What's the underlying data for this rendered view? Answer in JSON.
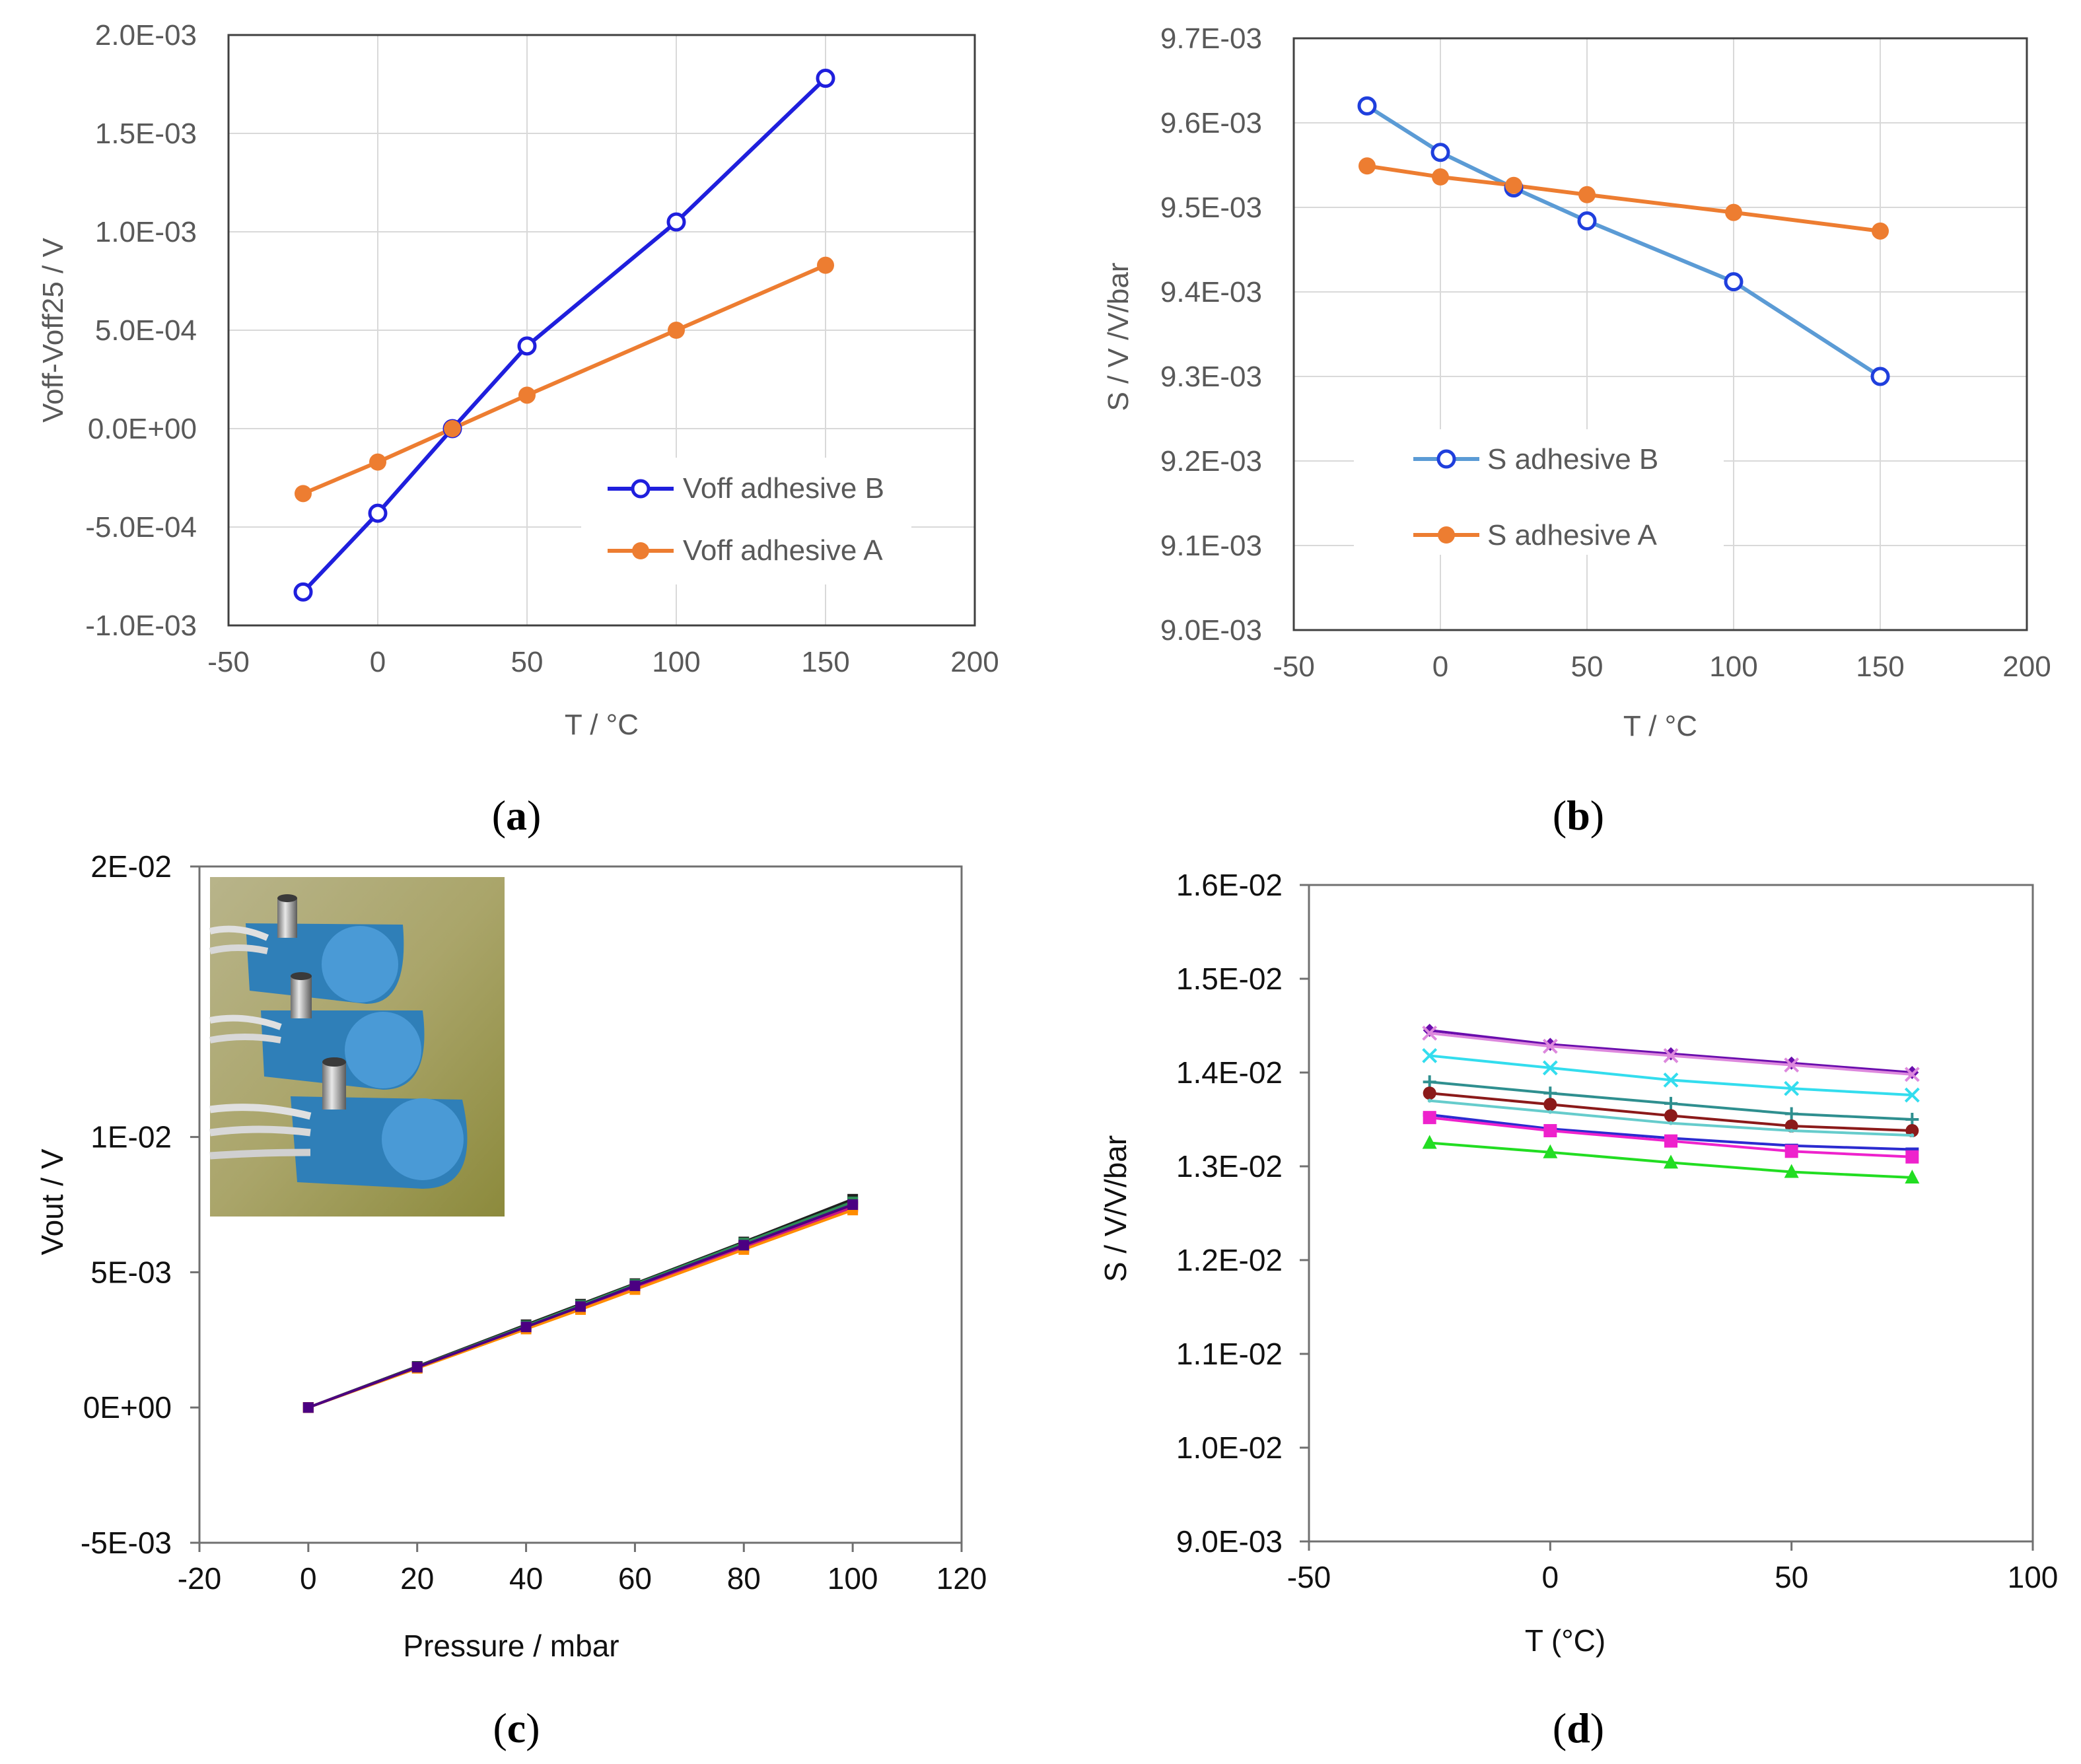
{
  "chart_data": [
    {
      "id": "a",
      "type": "line",
      "panel_label": "a",
      "xlabel": "T / °C",
      "ylabel": "Voff-Voff25 / V",
      "xlim": [
        -50,
        200
      ],
      "ylim": [
        -0.001,
        0.002
      ],
      "x_ticks": [
        "-50",
        "0",
        "50",
        "100",
        "150",
        "200"
      ],
      "y_ticks": [
        "-1.0E-03",
        "-5.0E-04",
        "0.0E+00",
        "5.0E-04",
        "1.0E-03",
        "1.5E-03",
        "2.0E-03"
      ],
      "grid": true,
      "legend_placement": "bottom-right",
      "series": [
        {
          "name": "Voff adhesive B",
          "color": "#1f1fdd",
          "marker": "open-circle",
          "x": [
            -25,
            0,
            25,
            50,
            100,
            150
          ],
          "y": [
            -0.00083,
            -0.00043,
            0.0,
            0.00042,
            0.00105,
            0.00178
          ]
        },
        {
          "name": "Voff adhesive A",
          "color": "#ed7d31",
          "marker": "filled-circle",
          "x": [
            -25,
            0,
            25,
            50,
            100,
            150
          ],
          "y": [
            -0.00033,
            -0.00017,
            0.0,
            0.00017,
            0.0005,
            0.00083
          ]
        }
      ]
    },
    {
      "id": "b",
      "type": "line",
      "panel_label": "b",
      "xlabel": "T / °C",
      "ylabel": "S / V /V/bar",
      "xlim": [
        -50,
        200
      ],
      "ylim": [
        0.009,
        0.0097
      ],
      "x_ticks": [
        "-50",
        "0",
        "50",
        "100",
        "150",
        "200"
      ],
      "y_ticks": [
        "9.0E-03",
        "9.1E-03",
        "9.2E-03",
        "9.3E-03",
        "9.4E-03",
        "9.5E-03",
        "9.6E-03",
        "9.7E-03"
      ],
      "grid": true,
      "legend_placement": "bottom-left",
      "series": [
        {
          "name": "S adhesive B",
          "color": "#5b9bd5",
          "marker": "open-circle",
          "x": [
            -25,
            0,
            25,
            50,
            100,
            150
          ],
          "y": [
            0.00962,
            0.009565,
            0.009523,
            0.009484,
            0.009412,
            0.0093
          ]
        },
        {
          "name": "S adhesive A",
          "color": "#ed7d31",
          "marker": "filled-circle",
          "x": [
            -25,
            0,
            25,
            50,
            100,
            150
          ],
          "y": [
            0.009549,
            0.009536,
            0.009526,
            0.009515,
            0.009494,
            0.009472
          ]
        }
      ]
    },
    {
      "id": "c",
      "type": "line",
      "panel_label": "c",
      "xlabel": "Pressure / mbar",
      "ylabel": "Vout / V",
      "xlim": [
        -20,
        120
      ],
      "ylim": [
        -0.005,
        0.02
      ],
      "x_ticks": [
        "-20",
        "0",
        "20",
        "40",
        "60",
        "80",
        "100",
        "120"
      ],
      "y_ticks": [
        "-5E-03",
        "0E+00",
        "5E-03",
        "1E-02",
        "2E-02"
      ],
      "grid": false,
      "inset_photo": "pressure-sensor-photo",
      "series": [
        {
          "color": "#1f1f1f",
          "x": [
            0,
            20,
            40,
            50,
            60,
            80,
            100
          ],
          "y": [
            0,
            0.00152,
            0.00306,
            0.00382,
            0.00458,
            0.00612,
            0.0077
          ]
        },
        {
          "color": "#2e8b57",
          "x": [
            0,
            20,
            40,
            50,
            60,
            80,
            100
          ],
          "y": [
            0,
            0.0015,
            0.00302,
            0.00378,
            0.00455,
            0.00608,
            0.0076
          ]
        },
        {
          "color": "#8b0000",
          "x": [
            0,
            20,
            40,
            50,
            60,
            80,
            100
          ],
          "y": [
            0,
            0.00148,
            0.00296,
            0.0037,
            0.00446,
            0.00596,
            0.00745
          ]
        },
        {
          "color": "#c71585",
          "x": [
            0,
            20,
            40,
            50,
            60,
            80,
            100
          ],
          "y": [
            0,
            0.00147,
            0.00294,
            0.00368,
            0.00443,
            0.00592,
            0.0074
          ]
        },
        {
          "color": "#ff8c00",
          "x": [
            0,
            20,
            40,
            50,
            60,
            80,
            100
          ],
          "y": [
            0,
            0.00145,
            0.0029,
            0.00362,
            0.00436,
            0.00584,
            0.0073
          ]
        },
        {
          "color": "#4b0082",
          "x": [
            0,
            20,
            40,
            50,
            60,
            80,
            100
          ],
          "y": [
            0,
            0.00149,
            0.00298,
            0.00373,
            0.0045,
            0.006,
            0.0075
          ]
        }
      ]
    },
    {
      "id": "d",
      "type": "line",
      "panel_label": "d",
      "xlabel": "T (°C)",
      "ylabel": "S / V/V/bar",
      "xlim": [
        -50,
        100
      ],
      "ylim": [
        0.009,
        0.016
      ],
      "x_ticks": [
        "-50",
        "0",
        "50",
        "100"
      ],
      "y_ticks": [
        "9.0E-03",
        "1.0E-02",
        "1.1E-02",
        "1.2E-02",
        "1.3E-02",
        "1.4E-02",
        "1.5E-02",
        "1.6E-02"
      ],
      "grid": false,
      "series": [
        {
          "color": "#6a0dad",
          "marker": "diamond",
          "x": [
            -25,
            0,
            25,
            50,
            75
          ],
          "y": [
            0.01445,
            0.0143,
            0.0142,
            0.0141,
            0.014
          ]
        },
        {
          "color": "#dd88dd",
          "marker": "x",
          "x": [
            -25,
            0,
            25,
            50,
            75
          ],
          "y": [
            0.01442,
            0.01428,
            0.01418,
            0.01408,
            0.01398
          ]
        },
        {
          "color": "#33ddee",
          "marker": "x",
          "x": [
            -25,
            0,
            25,
            50,
            75
          ],
          "y": [
            0.01418,
            0.01405,
            0.01392,
            0.01383,
            0.01376
          ]
        },
        {
          "color": "#2f8f8f",
          "marker": "plus",
          "x": [
            -25,
            0,
            25,
            50,
            75
          ],
          "y": [
            0.0139,
            0.01378,
            0.01367,
            0.01356,
            0.0135
          ]
        },
        {
          "color": "#8b1a1a",
          "marker": "circle",
          "x": [
            -25,
            0,
            25,
            50,
            75
          ],
          "y": [
            0.01378,
            0.01366,
            0.01354,
            0.01343,
            0.01338
          ]
        },
        {
          "color": "#66cccc",
          "marker": "none",
          "x": [
            -25,
            0,
            25,
            50,
            75
          ],
          "y": [
            0.0137,
            0.01358,
            0.01346,
            0.01338,
            0.01333
          ]
        },
        {
          "color": "#2b2bd0",
          "marker": "dash",
          "x": [
            -25,
            0,
            25,
            50,
            75
          ],
          "y": [
            0.01355,
            0.0134,
            0.0133,
            0.01322,
            0.01318
          ]
        },
        {
          "color": "#ee22cc",
          "marker": "square",
          "x": [
            -25,
            0,
            25,
            50,
            75
          ],
          "y": [
            0.01352,
            0.01338,
            0.01327,
            0.01316,
            0.0131
          ]
        },
        {
          "color": "#22dd22",
          "marker": "triangle",
          "x": [
            -25,
            0,
            25,
            50,
            75
          ],
          "y": [
            0.01325,
            0.01315,
            0.01304,
            0.01294,
            0.01288
          ]
        }
      ]
    }
  ]
}
